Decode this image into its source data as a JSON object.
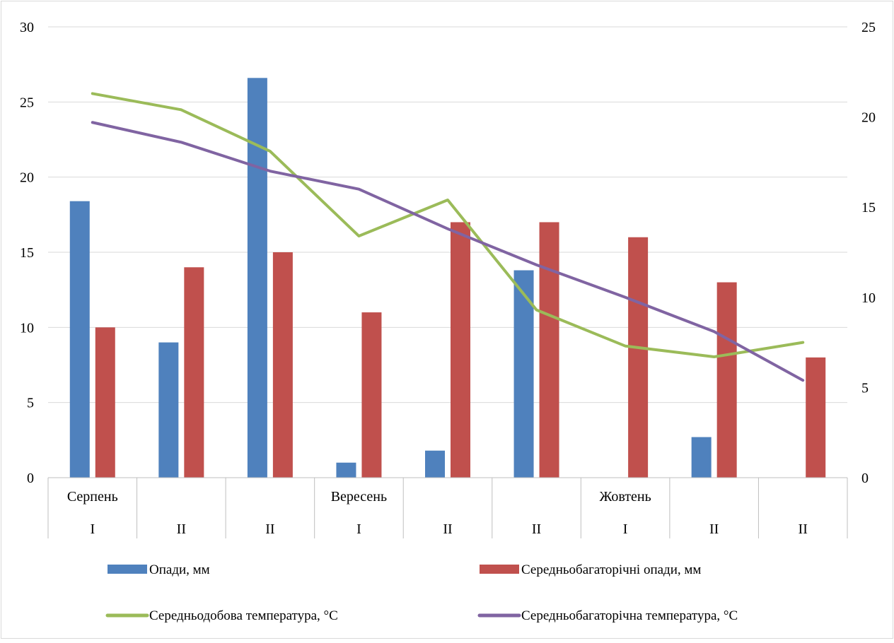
{
  "chart_data": {
    "type": "bar",
    "title": "",
    "xlabel": "",
    "ylabel_left": "",
    "ylabel_right": "",
    "ylim_left": [
      0,
      30
    ],
    "ylim_right": [
      0,
      25
    ],
    "yticks_left": [
      "0",
      "5",
      "10",
      "15",
      "20",
      "25",
      "30"
    ],
    "yticks_right": [
      "0",
      "5",
      "10",
      "15",
      "20",
      "25"
    ],
    "grid": true,
    "legend_position": "bottom",
    "categories": [
      {
        "month": "Серпень",
        "decade": "I"
      },
      {
        "month": "",
        "decade": "II"
      },
      {
        "month": "",
        "decade": "II"
      },
      {
        "month": "Вересень",
        "decade": "I"
      },
      {
        "month": "",
        "decade": "II"
      },
      {
        "month": "",
        "decade": "II"
      },
      {
        "month": "Жовтень",
        "decade": "I"
      },
      {
        "month": "",
        "decade": "II"
      },
      {
        "month": "",
        "decade": "II"
      }
    ],
    "bar_series": [
      {
        "name": "Опади, мм",
        "axis": "left",
        "color": "#4f81bd",
        "values": [
          18.4,
          9.0,
          26.6,
          1.0,
          1.8,
          13.8,
          0,
          2.7,
          0
        ]
      },
      {
        "name": "Середньобагаторічні опади, мм",
        "axis": "left",
        "color": "#c0504d",
        "values": [
          10,
          14,
          15,
          11,
          17,
          17,
          16,
          13,
          8
        ]
      }
    ],
    "line_series": [
      {
        "name": "Середньодобова температура, °С",
        "axis": "right",
        "color": "#9bbb59",
        "values": [
          21.3,
          20.4,
          18.1,
          13.4,
          15.4,
          9.3,
          7.3,
          6.7,
          7.5
        ]
      },
      {
        "name": "Середньобагаторічна температура, °С",
        "axis": "right",
        "color": "#8064a2",
        "values": [
          19.7,
          18.6,
          17.0,
          16.0,
          13.8,
          11.8,
          10.0,
          8.1,
          5.4
        ]
      }
    ]
  }
}
